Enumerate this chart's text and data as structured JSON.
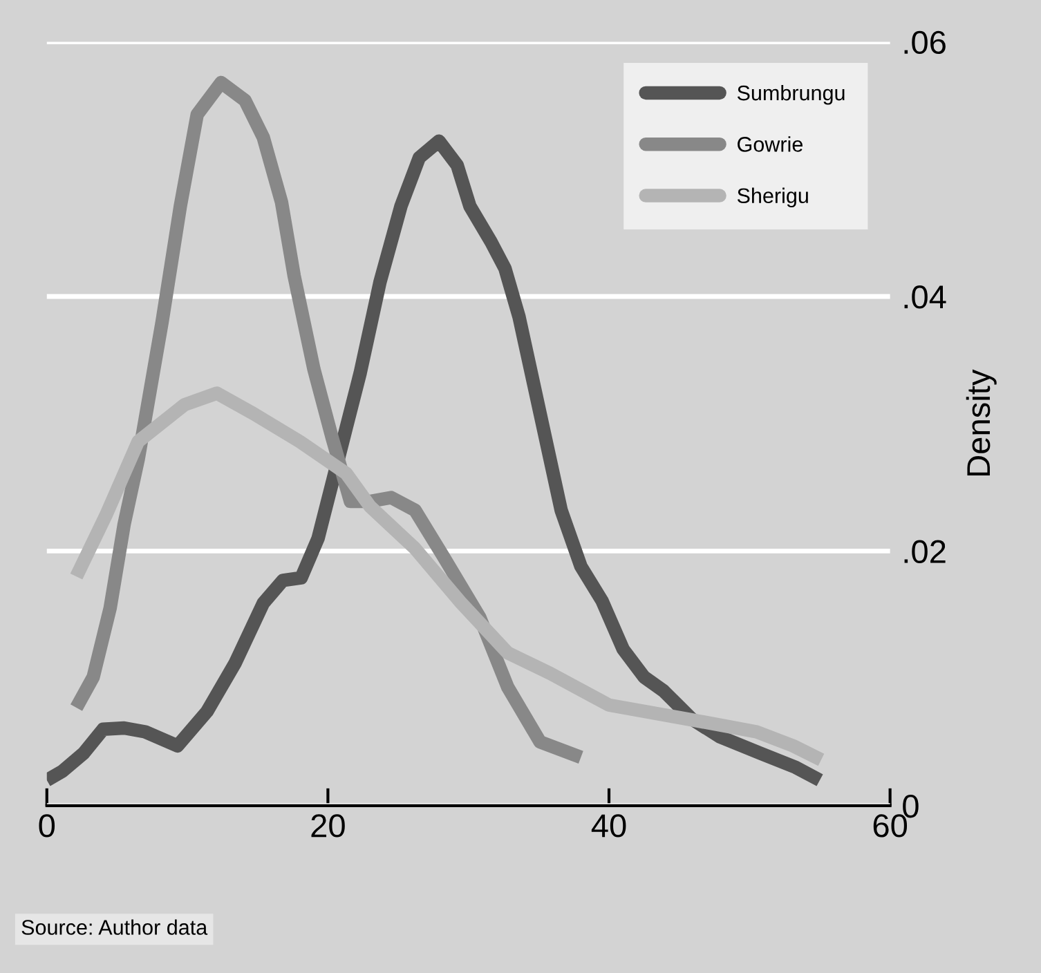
{
  "chart_data": {
    "type": "line",
    "ylabel": "Density",
    "xlim": [
      0,
      60
    ],
    "xticks": [
      0,
      20,
      40,
      60
    ],
    "ylim": [
      0,
      0.06
    ],
    "yticks": [
      0,
      {
        "value": 0.02,
        "label": ".02"
      },
      {
        "value": 0.04,
        "label": ".04"
      },
      {
        "value": 0.06,
        "label": ".06"
      }
    ],
    "grid": "y",
    "legend": "top right",
    "marker": "none",
    "line_style": "solid",
    "annotations": [
      "Source: Author data"
    ],
    "series": [
      {
        "name": "Sumbrungu",
        "color": "#555555",
        "x": [
          0,
          1.1,
          2.6,
          4.0,
          5.5,
          7.0,
          9.3,
          11.4,
          13.4,
          15.4,
          16.8,
          18.1,
          19.3,
          20.8,
          22.3,
          23.7,
          25.2,
          26.5,
          27.9,
          29.2,
          30.1,
          31.6,
          32.6,
          33.6,
          35.1,
          36.6,
          38.0,
          39.5,
          41.0,
          42.5,
          43.9,
          45.9,
          47.9,
          50.8,
          53.3,
          55.0
        ],
        "values": [
          0.002,
          0.0027,
          0.0041,
          0.006,
          0.0061,
          0.0058,
          0.0047,
          0.0074,
          0.0112,
          0.0159,
          0.0177,
          0.0179,
          0.021,
          0.0275,
          0.034,
          0.0411,
          0.0471,
          0.0509,
          0.0522,
          0.0503,
          0.0471,
          0.0443,
          0.0422,
          0.0384,
          0.0308,
          0.0232,
          0.0188,
          0.0161,
          0.0123,
          0.0101,
          0.009,
          0.0068,
          0.0054,
          0.0041,
          0.003,
          0.002
        ]
      },
      {
        "name": "Gowrie",
        "color": "#888888",
        "x": [
          2.1,
          3.3,
          4.5,
          5.5,
          6.5,
          8.2,
          9.5,
          10.7,
          12.4,
          14.1,
          15.4,
          16.7,
          17.6,
          19.0,
          20.3,
          21.6,
          23.0,
          24.5,
          26.2,
          28.2,
          30.8,
          32.8,
          35.1,
          38.0
        ],
        "values": [
          0.0077,
          0.0101,
          0.0155,
          0.0221,
          0.0272,
          0.038,
          0.0471,
          0.0543,
          0.0568,
          0.0554,
          0.0525,
          0.0474,
          0.0416,
          0.0343,
          0.0289,
          0.0239,
          0.0239,
          0.0242,
          0.0232,
          0.0196,
          0.0148,
          0.0093,
          0.005,
          0.0038
        ]
      },
      {
        "name": "Sherigu",
        "color": "#b4b4b4",
        "x": [
          2.1,
          4.2,
          6.5,
          9.8,
          12.1,
          14.7,
          18.0,
          21.3,
          23.0,
          26.2,
          29.5,
          32.8,
          35.8,
          40.0,
          45.6,
          50.5,
          53.1,
          55.1
        ],
        "values": [
          0.018,
          0.0228,
          0.0286,
          0.0315,
          0.0324,
          0.0308,
          0.0286,
          0.0261,
          0.0235,
          0.0202,
          0.0159,
          0.012,
          0.0104,
          0.0079,
          0.0068,
          0.0058,
          0.0047,
          0.0036
        ]
      }
    ]
  }
}
